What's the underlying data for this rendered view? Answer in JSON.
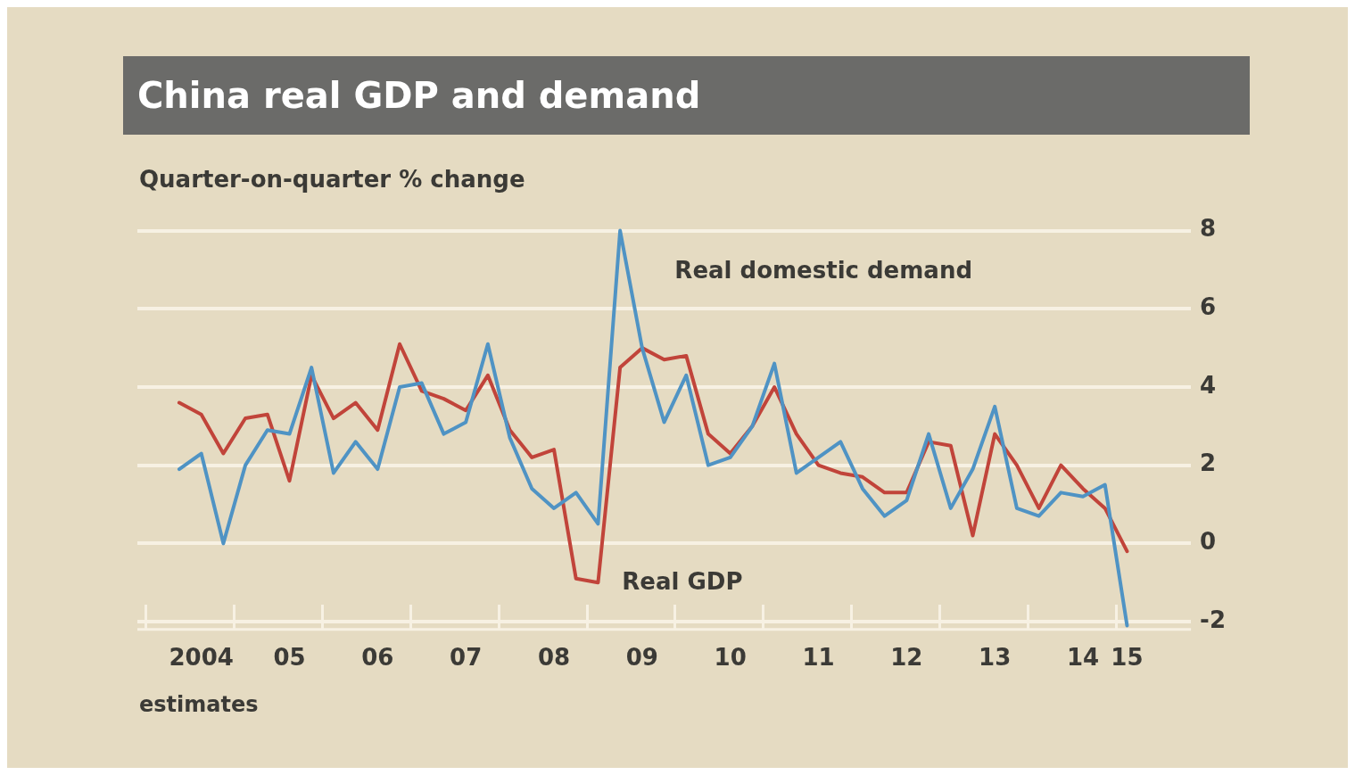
{
  "chart_data": {
    "type": "line",
    "title": "China real GDP and demand",
    "ylabel": "Quarter-on-quarter % change",
    "annotations": [
      "estimates"
    ],
    "categories": [
      null,
      "2004",
      null,
      null,
      null,
      "05",
      null,
      null,
      null,
      "06",
      null,
      null,
      null,
      "07",
      null,
      null,
      null,
      "08",
      null,
      null,
      null,
      "09",
      null,
      null,
      null,
      "10",
      null,
      null,
      null,
      "11",
      null,
      null,
      null,
      "12",
      null,
      null,
      null,
      "13",
      null,
      null,
      null,
      "14",
      null,
      "15"
    ],
    "series": [
      {
        "name": "Real domestic demand",
        "color": "#4f93c4",
        "values": [
          1.9,
          2.3,
          0,
          2.0,
          2.9,
          2.8,
          4.5,
          1.8,
          2.6,
          1.9,
          4.0,
          4.1,
          2.8,
          3.1,
          5.1,
          2.7,
          1.4,
          0.9,
          1.3,
          0.5,
          8.0,
          5.0,
          3.1,
          4.3,
          2.0,
          2.2,
          3.0,
          4.6,
          1.8,
          2.2,
          2.6,
          1.4,
          0.7,
          1.1,
          2.8,
          0.9,
          1.9,
          3.5,
          0.9,
          0.7,
          1.3,
          1.2,
          1.5,
          -2.1
        ]
      },
      {
        "name": "Real GDP",
        "color": "#c1443a",
        "values": [
          3.6,
          3.3,
          2.3,
          3.2,
          3.3,
          1.6,
          4.3,
          3.2,
          3.6,
          2.9,
          5.1,
          3.9,
          3.7,
          3.4,
          4.3,
          2.9,
          2.2,
          2.4,
          -0.9,
          -1.0,
          4.5,
          5.0,
          4.7,
          4.8,
          2.8,
          2.3,
          3.0,
          4.0,
          2.8,
          2.0,
          1.8,
          1.7,
          1.3,
          1.3,
          2.6,
          2.5,
          0.2,
          2.8,
          2.0,
          0.9,
          2.0,
          1.4,
          0.9,
          -0.2
        ]
      }
    ],
    "ylim": [
      -2.2,
      8
    ],
    "yticks": [
      -2,
      0,
      2,
      4,
      6,
      8
    ],
    "grid": "y",
    "legend": false,
    "marker": "none",
    "line_style": "solid"
  }
}
